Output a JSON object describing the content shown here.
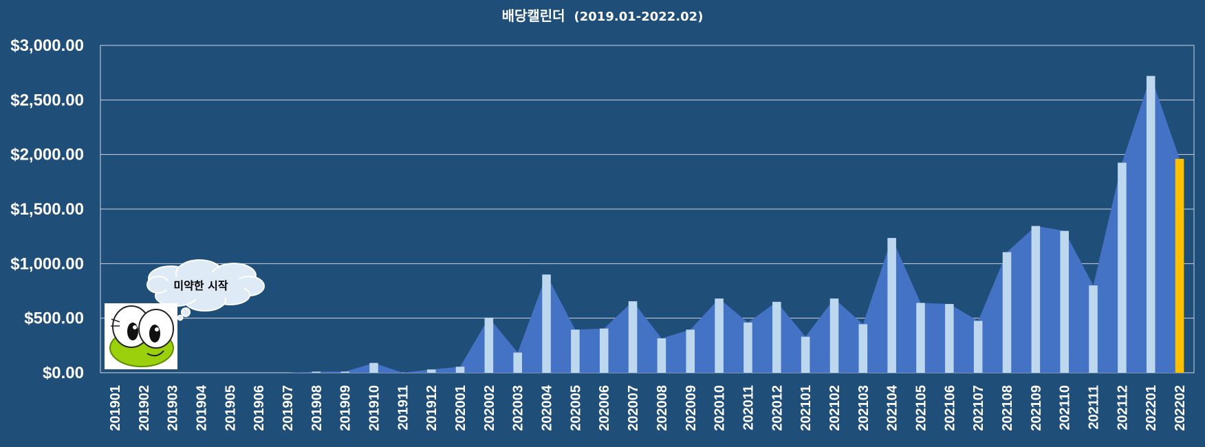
{
  "chart_data": {
    "type": "bar",
    "title": "배당캘린더",
    "subtitle": "(2019.01-2022.02)",
    "categories": [
      "201901",
      "201902",
      "201903",
      "201904",
      "201905",
      "201906",
      "201907",
      "201908",
      "201909",
      "201910",
      "201911",
      "201912",
      "202001",
      "202002",
      "202003",
      "202004",
      "202005",
      "202006",
      "202007",
      "202008",
      "202009",
      "202010",
      "202011",
      "202012",
      "202101",
      "202102",
      "202103",
      "202104",
      "202105",
      "202106",
      "202107",
      "202108",
      "202109",
      "202110",
      "202111",
      "202112",
      "202201",
      "202202"
    ],
    "values": [
      0,
      0,
      0,
      0,
      0,
      0,
      0,
      10,
      10,
      90,
      0,
      30,
      55,
      505,
      185,
      900,
      395,
      405,
      655,
      315,
      395,
      680,
      460,
      650,
      330,
      680,
      445,
      1235,
      640,
      630,
      475,
      1105,
      1345,
      1300,
      800,
      1925,
      2720,
      1960
    ],
    "y_tick_labels": [
      "$0.00",
      "$500.00",
      "$1,000.00",
      "$1,500.00",
      "$2,000.00",
      "$2,500.00",
      "$3,000.00"
    ],
    "ylim": [
      0,
      3000
    ],
    "grid": true,
    "highlight_category": "202202",
    "colors": {
      "background": "#1f4e79",
      "area": "#4472c4",
      "bar": "#bdd7ee",
      "highlight_bar": "#ffc000",
      "grid": "#d0d8e4"
    }
  },
  "annotation": {
    "bubble_text": "미약한 시작",
    "mascot_icon": "frog-mascot-icon"
  }
}
